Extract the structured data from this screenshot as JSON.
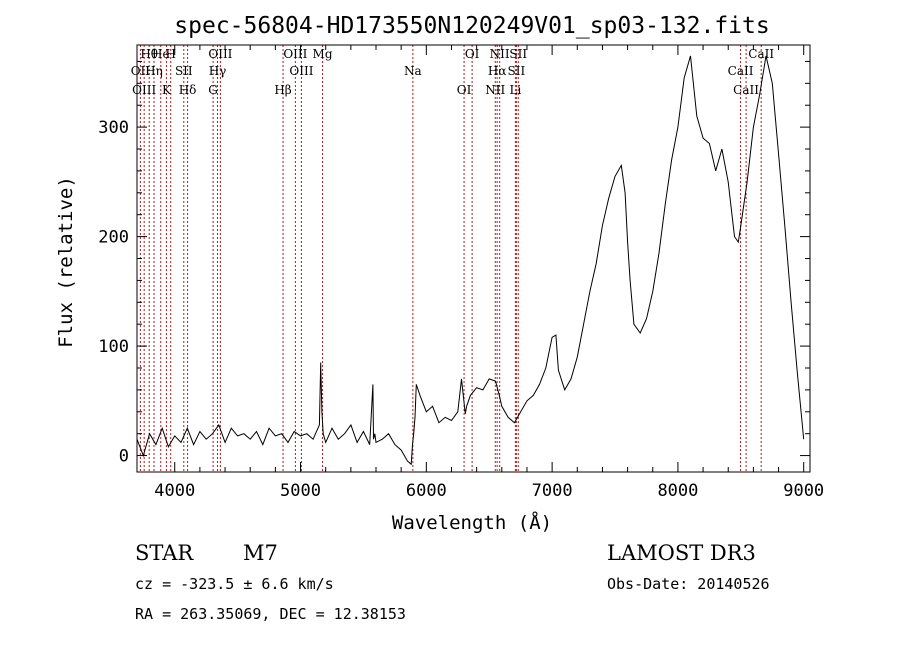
{
  "chart_data": {
    "type": "line",
    "title": "spec-56804-HD173550N120249V01_sp03-132.fits",
    "xlabel": "Wavelength (Å)",
    "ylabel": "Flux (relative)",
    "xlim": [
      3700,
      9050
    ],
    "ylim": [
      -15,
      375
    ],
    "xticks": [
      4000,
      5000,
      6000,
      7000,
      8000,
      9000
    ],
    "yticks": [
      0,
      100,
      200,
      300
    ],
    "series": [
      {
        "name": "flux",
        "x": [
          3700,
          3750,
          3800,
          3850,
          3900,
          3950,
          4000,
          4050,
          4100,
          4150,
          4200,
          4250,
          4300,
          4350,
          4400,
          4450,
          4500,
          4550,
          4600,
          4650,
          4700,
          4750,
          4800,
          4850,
          4900,
          4950,
          5000,
          5050,
          5100,
          5150,
          5160,
          5170,
          5180,
          5200,
          5250,
          5300,
          5350,
          5400,
          5450,
          5500,
          5550,
          5575,
          5580,
          5590,
          5600,
          5650,
          5700,
          5750,
          5800,
          5850,
          5880,
          5890,
          5900,
          5910,
          5920,
          5950,
          6000,
          6050,
          6100,
          6150,
          6200,
          6250,
          6280,
          6300,
          6310,
          6320,
          6350,
          6400,
          6450,
          6500,
          6550,
          6580,
          6600,
          6650,
          6700,
          6750,
          6800,
          6850,
          6900,
          6950,
          7000,
          7030,
          7050,
          7100,
          7150,
          7200,
          7250,
          7300,
          7350,
          7400,
          7450,
          7500,
          7550,
          7580,
          7600,
          7620,
          7650,
          7700,
          7750,
          7800,
          7850,
          7900,
          7950,
          8000,
          8050,
          8100,
          8150,
          8200,
          8250,
          8300,
          8350,
          8400,
          8450,
          8480,
          8500,
          8550,
          8600,
          8650,
          8700,
          8750,
          8800,
          8850,
          8900,
          8950,
          9000
        ],
        "y": [
          15,
          0,
          20,
          10,
          25,
          8,
          18,
          12,
          25,
          10,
          22,
          15,
          20,
          28,
          12,
          25,
          18,
          20,
          15,
          22,
          10,
          25,
          18,
          20,
          12,
          22,
          18,
          20,
          15,
          28,
          85,
          40,
          20,
          12,
          25,
          15,
          20,
          28,
          12,
          22,
          10,
          65,
          15,
          20,
          12,
          15,
          20,
          10,
          5,
          -5,
          -8,
          10,
          20,
          35,
          65,
          55,
          40,
          45,
          30,
          35,
          32,
          40,
          70,
          48,
          38,
          45,
          55,
          62,
          60,
          70,
          68,
          55,
          45,
          35,
          30,
          40,
          50,
          55,
          65,
          80,
          108,
          110,
          78,
          60,
          70,
          90,
          120,
          150,
          175,
          210,
          235,
          255,
          265,
          240,
          195,
          160,
          120,
          112,
          125,
          150,
          185,
          230,
          270,
          300,
          345,
          365,
          310,
          290,
          285,
          260,
          280,
          250,
          200,
          195,
          210,
          250,
          300,
          330,
          365,
          340,
          275,
          210,
          140,
          75,
          15
        ]
      }
    ],
    "line_markers": [
      {
        "label": "Hθ",
        "x": 3797
      },
      {
        "label": "OII",
        "x": 3727
      },
      {
        "label": "OIII",
        "x": 3757
      },
      {
        "label": "He",
        "x": 3889
      },
      {
        "label": "Hη",
        "x": 3835
      },
      {
        "label": "K",
        "x": 3934
      },
      {
        "label": "H",
        "x": 3968
      },
      {
        "label": "SII",
        "x": 4072
      },
      {
        "label": "Hδ",
        "x": 4102
      },
      {
        "label": "OIII",
        "x": 4363
      },
      {
        "label": "Hγ",
        "x": 4340
      },
      {
        "label": "G",
        "x": 4305
      },
      {
        "label": "OIII",
        "x": 4959
      },
      {
        "label": "OIII",
        "x": 5007
      },
      {
        "label": "Hβ",
        "x": 4861
      },
      {
        "label": "Mg",
        "x": 5175
      },
      {
        "label": "Na",
        "x": 5893
      },
      {
        "label": "OI",
        "x": 6300
      },
      {
        "label": "OI",
        "x": 6364
      },
      {
        "label": "Hα",
        "x": 6563
      },
      {
        "label": "NII",
        "x": 6548
      },
      {
        "label": "NII",
        "x": 6583
      },
      {
        "label": "SII",
        "x": 6716
      },
      {
        "label": "Li",
        "x": 6708
      },
      {
        "label": "SII",
        "x": 6731
      },
      {
        "label": "CaII",
        "x": 8498
      },
      {
        "label": "CaII",
        "x": 8542
      },
      {
        "label": "CaII",
        "x": 8662
      }
    ]
  },
  "info": {
    "class_label": "STAR",
    "subclass": "M7",
    "survey": "LAMOST DR3",
    "cz": "cz = -323.5 ± 6.6 km/s",
    "obs_date": "Obs-Date: 20140526",
    "coords": "RA = 263.35069, DEC =  12.38153"
  },
  "colors": {
    "axis": "#000000",
    "spectrum": "#000000",
    "marker": "#b01818"
  }
}
